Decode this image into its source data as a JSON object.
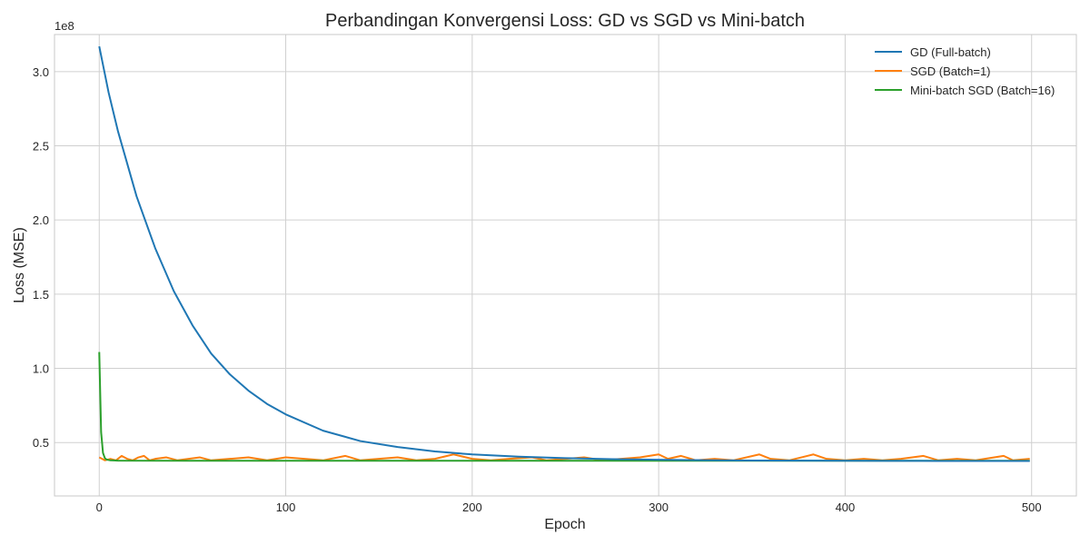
{
  "chart_data": {
    "type": "line",
    "title": "Perbandingan Konvergensi Loss: GD vs SGD vs Mini-batch",
    "xlabel": "Epoch",
    "ylabel": "Loss (MSE)",
    "y_offset_label": "1e8",
    "xlim": [
      -24,
      524
    ],
    "ylim": [
      0.14,
      3.25
    ],
    "x_ticks": [
      0,
      100,
      200,
      300,
      400,
      500
    ],
    "x_tick_labels": [
      "0",
      "100",
      "200",
      "300",
      "400",
      "500"
    ],
    "y_ticks": [
      0.5,
      1.0,
      1.5,
      2.0,
      2.5,
      3.0
    ],
    "y_tick_labels": [
      "0.5",
      "1.0",
      "1.5",
      "2.0",
      "2.5",
      "3.0"
    ],
    "grid": true,
    "legend_position": "top-right",
    "series": [
      {
        "name": "GD (Full-batch)",
        "color": "#1f77b4",
        "x": [
          0,
          5,
          10,
          20,
          30,
          40,
          50,
          60,
          70,
          80,
          90,
          100,
          120,
          140,
          160,
          180,
          200,
          225,
          250,
          275,
          300,
          325,
          350,
          375,
          400,
          425,
          450,
          475,
          499
        ],
        "y": [
          3.17,
          2.86,
          2.6,
          2.16,
          1.81,
          1.52,
          1.29,
          1.1,
          0.96,
          0.85,
          0.76,
          0.69,
          0.58,
          0.51,
          0.47,
          0.44,
          0.42,
          0.405,
          0.395,
          0.388,
          0.384,
          0.381,
          0.379,
          0.378,
          0.377,
          0.3765,
          0.376,
          0.3757,
          0.3755
        ]
      },
      {
        "name": "SGD (Batch=1)",
        "color": "#ff7f0e",
        "x": [
          0,
          3,
          6,
          9,
          12,
          15,
          18,
          21,
          24,
          27,
          30,
          36,
          42,
          48,
          54,
          60,
          70,
          80,
          90,
          100,
          110,
          120,
          132,
          140,
          150,
          160,
          170,
          180,
          190,
          200,
          210,
          220,
          232,
          240,
          250,
          260,
          270,
          280,
          290,
          300,
          305,
          312,
          320,
          330,
          340,
          354,
          360,
          370,
          383,
          390,
          400,
          410,
          420,
          430,
          442,
          450,
          460,
          470,
          485,
          490,
          499
        ],
        "y": [
          0.4,
          0.38,
          0.39,
          0.38,
          0.41,
          0.39,
          0.38,
          0.4,
          0.41,
          0.38,
          0.39,
          0.4,
          0.38,
          0.39,
          0.4,
          0.38,
          0.39,
          0.4,
          0.38,
          0.4,
          0.39,
          0.38,
          0.41,
          0.38,
          0.39,
          0.4,
          0.38,
          0.39,
          0.42,
          0.39,
          0.38,
          0.39,
          0.4,
          0.38,
          0.39,
          0.4,
          0.38,
          0.39,
          0.4,
          0.42,
          0.39,
          0.41,
          0.38,
          0.39,
          0.38,
          0.42,
          0.39,
          0.38,
          0.42,
          0.39,
          0.38,
          0.39,
          0.38,
          0.39,
          0.41,
          0.38,
          0.39,
          0.38,
          0.41,
          0.38,
          0.39
        ]
      },
      {
        "name": "Mini-batch SGD (Batch=16)",
        "color": "#2ca02c",
        "x": [
          0,
          1,
          2,
          3,
          4,
          6,
          10,
          50,
          100,
          200,
          300,
          400,
          499
        ],
        "y": [
          1.11,
          0.57,
          0.43,
          0.395,
          0.385,
          0.38,
          0.378,
          0.377,
          0.377,
          0.377,
          0.377,
          0.377,
          0.377
        ]
      }
    ]
  }
}
